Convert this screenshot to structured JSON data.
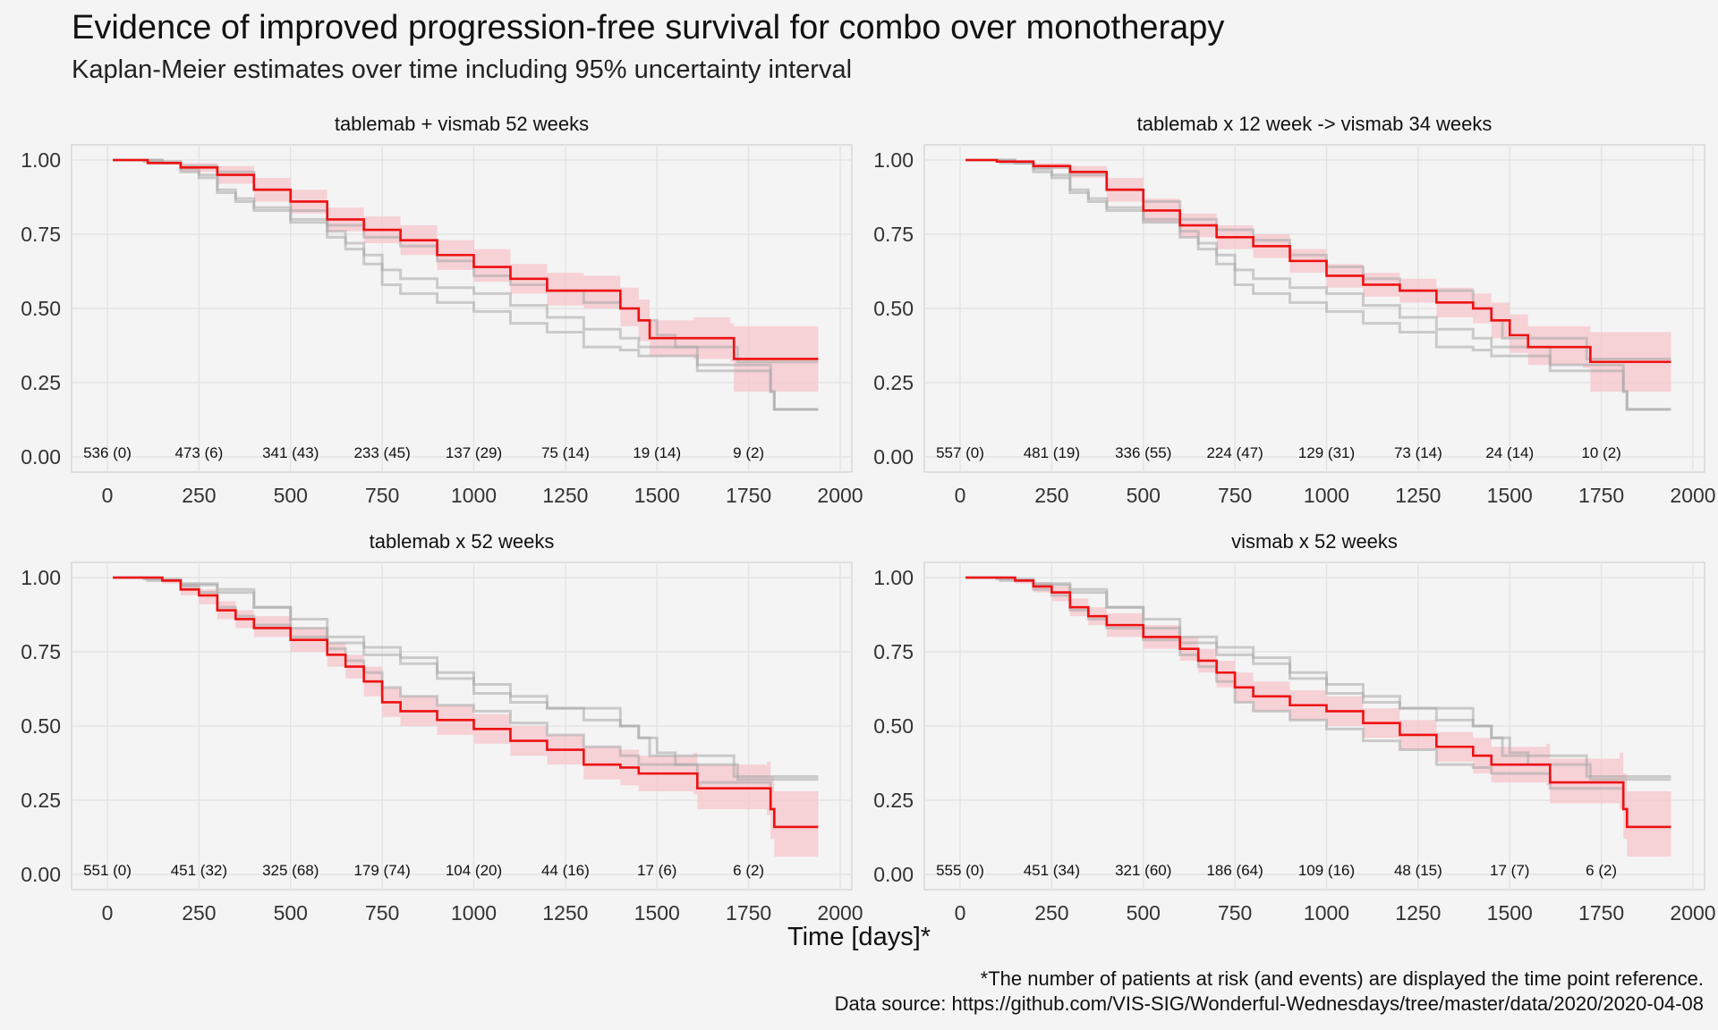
{
  "title": "Evidence of improved progression-free survival for combo over monotherapy",
  "subtitle": "Kaplan-Meier estimates over time including 95% uncertainty interval",
  "xlabel": "Time [days]*",
  "footnote": "*The number of patients at risk (and events) are displayed the time point reference.",
  "source": "Data source: https://github.com/VIS-SIG/Wonderful-Wednesdays/tree/master/data/2020/2020-04-08",
  "colors": {
    "highlight": "#ee1111",
    "band": "#f7c6cc",
    "other": "#a8a8a8",
    "grid": "#e4e4e4",
    "panel_border": "#cfcfcf"
  },
  "chart_data": {
    "type": "line",
    "xlim": [
      0,
      2000
    ],
    "ylim": [
      0,
      1
    ],
    "x_ticks": [
      0,
      250,
      500,
      750,
      1000,
      1250,
      1500,
      1750,
      2000
    ],
    "y_ticks": [
      "0.00",
      "0.25",
      "0.50",
      "0.75",
      "1.00"
    ],
    "risk_table_x": [
      0,
      250,
      500,
      750,
      1000,
      1250,
      1500,
      1750
    ],
    "arms": [
      {
        "name": "tablemab + vismab 52 weeks",
        "curve": [
          [
            15,
            1
          ],
          [
            110,
            0.99
          ],
          [
            200,
            0.975
          ],
          [
            300,
            0.95
          ],
          [
            400,
            0.9
          ],
          [
            500,
            0.86
          ],
          [
            600,
            0.8
          ],
          [
            700,
            0.765
          ],
          [
            800,
            0.73
          ],
          [
            900,
            0.68
          ],
          [
            1000,
            0.64
          ],
          [
            1100,
            0.6
          ],
          [
            1200,
            0.56
          ],
          [
            1300,
            0.56
          ],
          [
            1400,
            0.5
          ],
          [
            1450,
            0.46
          ],
          [
            1480,
            0.4
          ],
          [
            1600,
            0.4
          ],
          [
            1700,
            0.4
          ],
          [
            1710,
            0.33
          ],
          [
            1940,
            0.33
          ]
        ],
        "band_upper": [
          [
            15,
            1
          ],
          [
            110,
            0.995
          ],
          [
            200,
            0.99
          ],
          [
            300,
            0.98
          ],
          [
            400,
            0.94
          ],
          [
            500,
            0.9
          ],
          [
            600,
            0.84
          ],
          [
            700,
            0.81
          ],
          [
            800,
            0.78
          ],
          [
            900,
            0.73
          ],
          [
            1000,
            0.7
          ],
          [
            1100,
            0.65
          ],
          [
            1200,
            0.62
          ],
          [
            1300,
            0.61
          ],
          [
            1400,
            0.57
          ],
          [
            1450,
            0.53
          ],
          [
            1480,
            0.46
          ],
          [
            1600,
            0.47
          ],
          [
            1700,
            0.45
          ],
          [
            1710,
            0.44
          ],
          [
            1940,
            0.44
          ]
        ],
        "band_lower": [
          [
            15,
            1
          ],
          [
            110,
            0.985
          ],
          [
            200,
            0.96
          ],
          [
            300,
            0.92
          ],
          [
            400,
            0.86
          ],
          [
            500,
            0.82
          ],
          [
            600,
            0.76
          ],
          [
            700,
            0.72
          ],
          [
            800,
            0.68
          ],
          [
            900,
            0.63
          ],
          [
            1000,
            0.59
          ],
          [
            1100,
            0.55
          ],
          [
            1200,
            0.51
          ],
          [
            1300,
            0.5
          ],
          [
            1400,
            0.44
          ],
          [
            1450,
            0.39
          ],
          [
            1480,
            0.34
          ],
          [
            1600,
            0.33
          ],
          [
            1700,
            0.32
          ],
          [
            1710,
            0.22
          ],
          [
            1940,
            0.22
          ]
        ],
        "risk_labels": [
          "536 (0)",
          "473 (6)",
          "341 (43)",
          "233 (45)",
          "137 (29)",
          "75 (14)",
          "19 (14)",
          "9 (2)"
        ]
      },
      {
        "name": "tablemab x 12 week -> vismab 34 weeks",
        "curve": [
          [
            15,
            1
          ],
          [
            100,
            0.995
          ],
          [
            200,
            0.98
          ],
          [
            300,
            0.96
          ],
          [
            400,
            0.9
          ],
          [
            500,
            0.83
          ],
          [
            600,
            0.78
          ],
          [
            700,
            0.74
          ],
          [
            800,
            0.71
          ],
          [
            900,
            0.66
          ],
          [
            1000,
            0.61
          ],
          [
            1100,
            0.58
          ],
          [
            1200,
            0.56
          ],
          [
            1300,
            0.52
          ],
          [
            1400,
            0.5
          ],
          [
            1450,
            0.46
          ],
          [
            1500,
            0.41
          ],
          [
            1550,
            0.37
          ],
          [
            1700,
            0.37
          ],
          [
            1720,
            0.32
          ],
          [
            1940,
            0.32
          ]
        ],
        "band_upper": [
          [
            15,
            1
          ],
          [
            100,
            0.998
          ],
          [
            200,
            0.99
          ],
          [
            300,
            0.98
          ],
          [
            400,
            0.94
          ],
          [
            500,
            0.87
          ],
          [
            600,
            0.82
          ],
          [
            700,
            0.78
          ],
          [
            800,
            0.75
          ],
          [
            900,
            0.7
          ],
          [
            1000,
            0.65
          ],
          [
            1100,
            0.62
          ],
          [
            1200,
            0.6
          ],
          [
            1300,
            0.57
          ],
          [
            1400,
            0.55
          ],
          [
            1450,
            0.52
          ],
          [
            1500,
            0.48
          ],
          [
            1550,
            0.44
          ],
          [
            1700,
            0.44
          ],
          [
            1720,
            0.42
          ],
          [
            1940,
            0.42
          ]
        ],
        "band_lower": [
          [
            15,
            1
          ],
          [
            100,
            0.99
          ],
          [
            200,
            0.97
          ],
          [
            300,
            0.94
          ],
          [
            400,
            0.86
          ],
          [
            500,
            0.79
          ],
          [
            600,
            0.74
          ],
          [
            700,
            0.7
          ],
          [
            800,
            0.67
          ],
          [
            900,
            0.62
          ],
          [
            1000,
            0.57
          ],
          [
            1100,
            0.54
          ],
          [
            1200,
            0.52
          ],
          [
            1300,
            0.47
          ],
          [
            1400,
            0.45
          ],
          [
            1450,
            0.4
          ],
          [
            1500,
            0.35
          ],
          [
            1550,
            0.31
          ],
          [
            1700,
            0.3
          ],
          [
            1720,
            0.22
          ],
          [
            1940,
            0.22
          ]
        ],
        "risk_labels": [
          "557 (0)",
          "481 (19)",
          "336 (55)",
          "224 (47)",
          "129 (31)",
          "73 (14)",
          "24 (14)",
          "10 (2)"
        ]
      },
      {
        "name": "tablemab x 52 weeks",
        "curve": [
          [
            15,
            1
          ],
          [
            100,
            1
          ],
          [
            150,
            0.99
          ],
          [
            200,
            0.96
          ],
          [
            250,
            0.94
          ],
          [
            300,
            0.89
          ],
          [
            350,
            0.86
          ],
          [
            400,
            0.83
          ],
          [
            500,
            0.79
          ],
          [
            600,
            0.74
          ],
          [
            650,
            0.7
          ],
          [
            700,
            0.65
          ],
          [
            750,
            0.58
          ],
          [
            800,
            0.55
          ],
          [
            900,
            0.52
          ],
          [
            1000,
            0.49
          ],
          [
            1100,
            0.45
          ],
          [
            1200,
            0.42
          ],
          [
            1300,
            0.37
          ],
          [
            1400,
            0.36
          ],
          [
            1450,
            0.34
          ],
          [
            1600,
            0.34
          ],
          [
            1610,
            0.29
          ],
          [
            1800,
            0.29
          ],
          [
            1810,
            0.22
          ],
          [
            1820,
            0.16
          ],
          [
            1940,
            0.16
          ]
        ],
        "band_upper": [
          [
            15,
            1
          ],
          [
            100,
            1
          ],
          [
            150,
            0.995
          ],
          [
            200,
            0.98
          ],
          [
            250,
            0.96
          ],
          [
            300,
            0.92
          ],
          [
            350,
            0.89
          ],
          [
            400,
            0.87
          ],
          [
            500,
            0.83
          ],
          [
            600,
            0.78
          ],
          [
            650,
            0.74
          ],
          [
            700,
            0.7
          ],
          [
            750,
            0.63
          ],
          [
            800,
            0.6
          ],
          [
            900,
            0.57
          ],
          [
            1000,
            0.54
          ],
          [
            1100,
            0.5
          ],
          [
            1200,
            0.47
          ],
          [
            1300,
            0.43
          ],
          [
            1400,
            0.42
          ],
          [
            1450,
            0.4
          ],
          [
            1600,
            0.41
          ],
          [
            1610,
            0.37
          ],
          [
            1800,
            0.38
          ],
          [
            1810,
            0.33
          ],
          [
            1820,
            0.28
          ],
          [
            1940,
            0.28
          ]
        ],
        "band_lower": [
          [
            15,
            1
          ],
          [
            100,
            0.995
          ],
          [
            150,
            0.98
          ],
          [
            200,
            0.94
          ],
          [
            250,
            0.91
          ],
          [
            300,
            0.86
          ],
          [
            350,
            0.83
          ],
          [
            400,
            0.8
          ],
          [
            500,
            0.75
          ],
          [
            600,
            0.7
          ],
          [
            650,
            0.66
          ],
          [
            700,
            0.6
          ],
          [
            750,
            0.53
          ],
          [
            800,
            0.5
          ],
          [
            900,
            0.47
          ],
          [
            1000,
            0.44
          ],
          [
            1100,
            0.4
          ],
          [
            1200,
            0.37
          ],
          [
            1300,
            0.32
          ],
          [
            1400,
            0.3
          ],
          [
            1450,
            0.28
          ],
          [
            1600,
            0.27
          ],
          [
            1610,
            0.22
          ],
          [
            1800,
            0.2
          ],
          [
            1810,
            0.12
          ],
          [
            1820,
            0.06
          ],
          [
            1940,
            0.06
          ]
        ],
        "risk_labels": [
          "551 (0)",
          "451 (32)",
          "325 (68)",
          "179 (74)",
          "104 (20)",
          "44 (16)",
          "17 (6)",
          "6 (2)"
        ]
      },
      {
        "name": "vismab x 52 weeks",
        "curve": [
          [
            15,
            1
          ],
          [
            100,
            1
          ],
          [
            150,
            0.99
          ],
          [
            200,
            0.97
          ],
          [
            250,
            0.95
          ],
          [
            300,
            0.9
          ],
          [
            350,
            0.87
          ],
          [
            400,
            0.84
          ],
          [
            500,
            0.8
          ],
          [
            600,
            0.76
          ],
          [
            650,
            0.72
          ],
          [
            700,
            0.68
          ],
          [
            750,
            0.63
          ],
          [
            800,
            0.6
          ],
          [
            900,
            0.57
          ],
          [
            1000,
            0.55
          ],
          [
            1100,
            0.51
          ],
          [
            1200,
            0.47
          ],
          [
            1300,
            0.43
          ],
          [
            1400,
            0.4
          ],
          [
            1450,
            0.37
          ],
          [
            1600,
            0.37
          ],
          [
            1610,
            0.31
          ],
          [
            1800,
            0.31
          ],
          [
            1810,
            0.22
          ],
          [
            1820,
            0.16
          ],
          [
            1940,
            0.16
          ]
        ],
        "band_upper": [
          [
            15,
            1
          ],
          [
            100,
            1
          ],
          [
            150,
            0.995
          ],
          [
            200,
            0.985
          ],
          [
            250,
            0.97
          ],
          [
            300,
            0.93
          ],
          [
            350,
            0.9
          ],
          [
            400,
            0.88
          ],
          [
            500,
            0.84
          ],
          [
            600,
            0.8
          ],
          [
            650,
            0.76
          ],
          [
            700,
            0.72
          ],
          [
            750,
            0.68
          ],
          [
            800,
            0.65
          ],
          [
            900,
            0.62
          ],
          [
            1000,
            0.6
          ],
          [
            1100,
            0.56
          ],
          [
            1200,
            0.52
          ],
          [
            1300,
            0.48
          ],
          [
            1400,
            0.46
          ],
          [
            1450,
            0.43
          ],
          [
            1600,
            0.44
          ],
          [
            1610,
            0.39
          ],
          [
            1800,
            0.41
          ],
          [
            1810,
            0.34
          ],
          [
            1820,
            0.28
          ],
          [
            1940,
            0.28
          ]
        ],
        "band_lower": [
          [
            15,
            1
          ],
          [
            100,
            0.995
          ],
          [
            150,
            0.98
          ],
          [
            200,
            0.95
          ],
          [
            250,
            0.92
          ],
          [
            300,
            0.87
          ],
          [
            350,
            0.84
          ],
          [
            400,
            0.8
          ],
          [
            500,
            0.76
          ],
          [
            600,
            0.72
          ],
          [
            650,
            0.68
          ],
          [
            700,
            0.63
          ],
          [
            750,
            0.58
          ],
          [
            800,
            0.55
          ],
          [
            900,
            0.52
          ],
          [
            1000,
            0.5
          ],
          [
            1100,
            0.46
          ],
          [
            1200,
            0.42
          ],
          [
            1300,
            0.38
          ],
          [
            1400,
            0.34
          ],
          [
            1450,
            0.31
          ],
          [
            1600,
            0.3
          ],
          [
            1610,
            0.24
          ],
          [
            1800,
            0.22
          ],
          [
            1810,
            0.12
          ],
          [
            1820,
            0.06
          ],
          [
            1940,
            0.06
          ]
        ],
        "risk_labels": [
          "555 (0)",
          "451 (34)",
          "321 (60)",
          "186 (64)",
          "109 (16)",
          "48 (15)",
          "17 (7)",
          "6 (2)"
        ]
      }
    ]
  }
}
